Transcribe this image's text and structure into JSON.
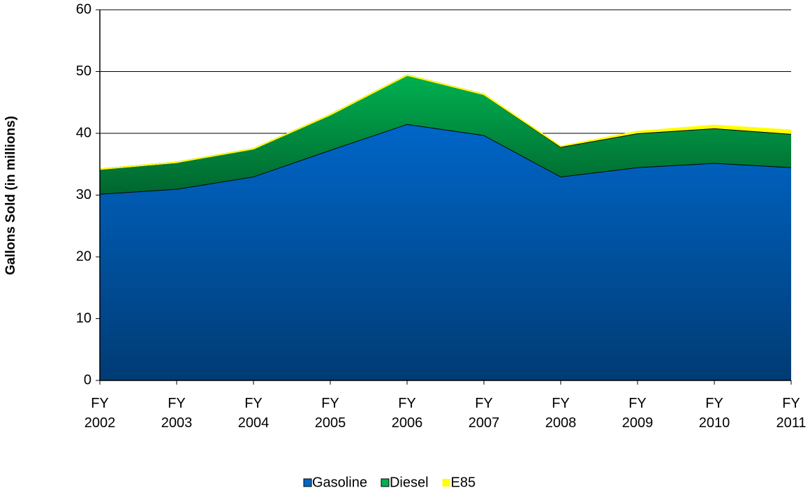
{
  "chart_data": {
    "type": "stacked-area",
    "y_label": "Gallons Sold (in millions)",
    "categories": [
      "FY 2002",
      "FY 2003",
      "FY 2004",
      "FY 2005",
      "FY 2006",
      "FY 2007",
      "FY 2008",
      "FY 2009",
      "FY 2010",
      "FY 2011"
    ],
    "series": [
      {
        "name": "Gasoline",
        "color": "#0066c8",
        "values": [
          30.2,
          31,
          33,
          37.3,
          41.5,
          39.7,
          33,
          34.5,
          35.2,
          34.5
        ]
      },
      {
        "name": "Diesel",
        "color": "#00b050",
        "values": [
          4,
          4.3,
          4.5,
          5.7,
          7.9,
          6.6,
          4.8,
          5.5,
          5.6,
          5.4
        ]
      },
      {
        "name": "E85",
        "color": "#ffff00",
        "values": [
          0,
          0,
          0,
          0,
          0,
          0,
          0.1,
          0.3,
          0.5,
          0.6
        ]
      }
    ],
    "ylim": [
      0,
      60
    ],
    "yticks": [
      0,
      10,
      20,
      30,
      40,
      50,
      60
    ],
    "grid": true,
    "legend": "bottom"
  }
}
